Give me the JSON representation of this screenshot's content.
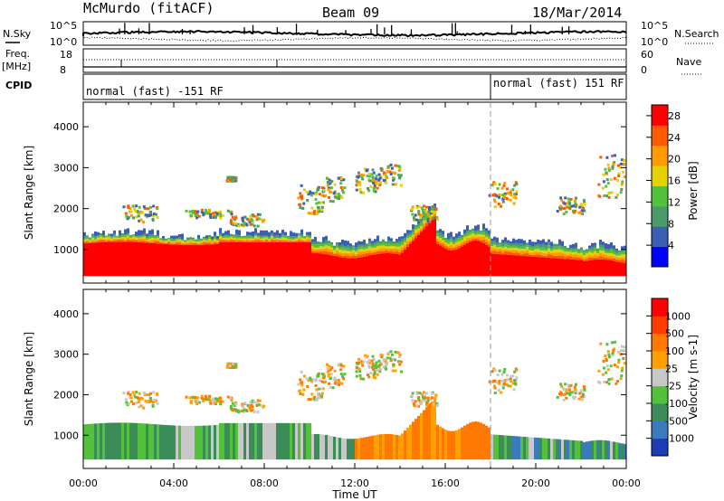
{
  "header": {
    "station": "McMurdo (fitACF)",
    "beam": "Beam 09",
    "date": "18/Mar/2014"
  },
  "top_panel": {
    "left_label_1": "N.Sky",
    "left_ticks_1": [
      "10^5",
      "10^0"
    ],
    "right_label_1": "N.Search",
    "right_ticks_1": [
      "10^5",
      "10^0"
    ],
    "left_label_2": "Freq.",
    "left_unit_2": "[MHz]",
    "left_ticks_2": [
      "18",
      "8"
    ],
    "right_label_2": "Nave",
    "right_ticks_2": [
      "60",
      "0"
    ],
    "cpid_label": "CPID",
    "cpid_segments": [
      {
        "label": "normal (fast) -151 RF",
        "start": "00:00",
        "end": "18:00"
      },
      {
        "label": "normal (fast) 151 RF",
        "start": "18:00",
        "end": "24:00"
      }
    ]
  },
  "chart_data": [
    {
      "type": "heatmap",
      "title": "",
      "ylabel": "Slant Range [km]",
      "xlabel": "",
      "y_ticks": [
        1000,
        2000,
        3000,
        4000
      ],
      "ylim": [
        180,
        4600
      ],
      "x_ticks": [
        "00:00",
        "04:00",
        "08:00",
        "12:00",
        "16:00",
        "20:00",
        "00:00"
      ],
      "xlim_hours": [
        0,
        24
      ],
      "colorbar": {
        "label": "Power [dB]",
        "ticks": [
          4,
          8,
          12,
          16,
          20,
          24,
          28
        ],
        "range": [
          0,
          30
        ],
        "colors": [
          "#0000ff",
          "#3a5fb4",
          "#4a9a6a",
          "#52c23a",
          "#e6d200",
          "#ff9a00",
          "#ff5a00",
          "#ff0000"
        ]
      }
    },
    {
      "type": "heatmap",
      "title": "",
      "ylabel": "Slant Range [km]",
      "xlabel": "Time UT",
      "y_ticks": [
        1000,
        2000,
        3000,
        4000
      ],
      "ylim": [
        180,
        4600
      ],
      "x_ticks": [
        "00:00",
        "04:00",
        "08:00",
        "12:00",
        "16:00",
        "20:00",
        "00:00"
      ],
      "xlim_hours": [
        0,
        24
      ],
      "colorbar": {
        "label": "Velocity [m s-1]",
        "ticks": [
          "1000",
          "500",
          "100",
          "25",
          "-25",
          "-100",
          "-500",
          "-1000"
        ],
        "colors": [
          "#1e3cb4",
          "#3a7abe",
          "#3c8c5a",
          "#52c23a",
          "#c8c8c8",
          "#ffa000",
          "#ff7800",
          "#ff3c00",
          "#ff0000"
        ]
      }
    }
  ],
  "colors": {
    "ground_scatter": "#c8c8c8",
    "grid_dash": "#999999"
  }
}
